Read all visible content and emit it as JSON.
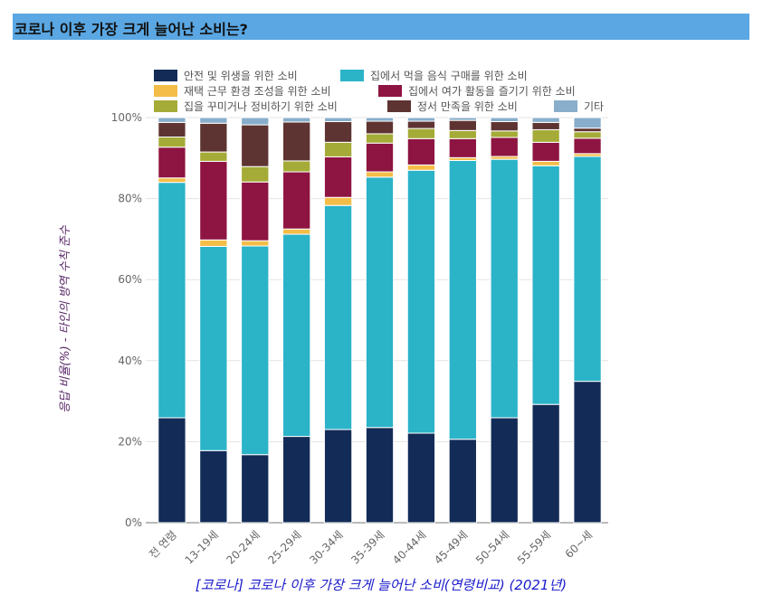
{
  "header": {
    "title": "코로나 이후 가장 크게 늘어난 소비는?"
  },
  "chart_data": {
    "type": "bar",
    "stacked": true,
    "title": "코로나 이후 가장 크게 늘어난 소비는?",
    "caption": "[코로나] 코로나 이후 가장 크게 늘어난 소비(연령비교) (2021년)",
    "xlabel": "",
    "ylabel": "응답 비율(%) - 타인의 방역 수칙 준수",
    "ylim": [
      0,
      100
    ],
    "yticks": [
      "0%",
      "20%",
      "40%",
      "60%",
      "80%",
      "100%"
    ],
    "grid": true,
    "legend_position": "top",
    "categories": [
      "전 연령",
      "13-19세",
      "20-24세",
      "25-29세",
      "30-34세",
      "35-39세",
      "40-44세",
      "45-49세",
      "50-54세",
      "55-59세",
      "60~세"
    ],
    "series": [
      {
        "name": "안전 및 위생을 위한 소비",
        "color": "#132c57",
        "values": [
          25.9,
          17.8,
          16.8,
          21.3,
          23.0,
          23.5,
          22.1,
          20.6,
          25.9,
          29.2,
          34.9
        ]
      },
      {
        "name": "집에서 먹을 음식 구매를 위한 소비",
        "color": "#2bb3c8",
        "values": [
          58.1,
          50.4,
          51.5,
          49.9,
          55.3,
          61.8,
          64.9,
          68.8,
          63.8,
          58.9,
          55.5
        ]
      },
      {
        "name": "재택 근무 환경 조성을 위한 소비",
        "color": "#f3bd48",
        "values": [
          1.1,
          1.6,
          1.3,
          1.3,
          2.0,
          1.3,
          1.3,
          0.7,
          0.7,
          1.1,
          0.7
        ]
      },
      {
        "name": "집에서 여가 활동을 즐기기 위한 소비",
        "color": "#8e1441",
        "values": [
          7.6,
          19.4,
          14.5,
          14.1,
          10.0,
          7.1,
          6.5,
          4.7,
          4.7,
          4.7,
          3.8
        ]
      },
      {
        "name": "집을 꾸미거나 정비하기 위한 소비",
        "color": "#a5ab37",
        "values": [
          2.5,
          2.3,
          3.8,
          2.7,
          3.6,
          2.3,
          2.5,
          2.0,
          1.6,
          3.1,
          1.6
        ]
      },
      {
        "name": "정서 만족을 위한 소비",
        "color": "#5e3432",
        "values": [
          3.6,
          7.1,
          10.3,
          9.6,
          5.1,
          3.1,
          1.8,
          2.5,
          2.3,
          1.8,
          0.9
        ]
      },
      {
        "name": "기타",
        "color": "#88aecb",
        "values": [
          1.2,
          1.4,
          1.8,
          1.1,
          1.0,
          0.9,
          0.9,
          0.7,
          1.0,
          1.2,
          2.6
        ]
      }
    ]
  }
}
